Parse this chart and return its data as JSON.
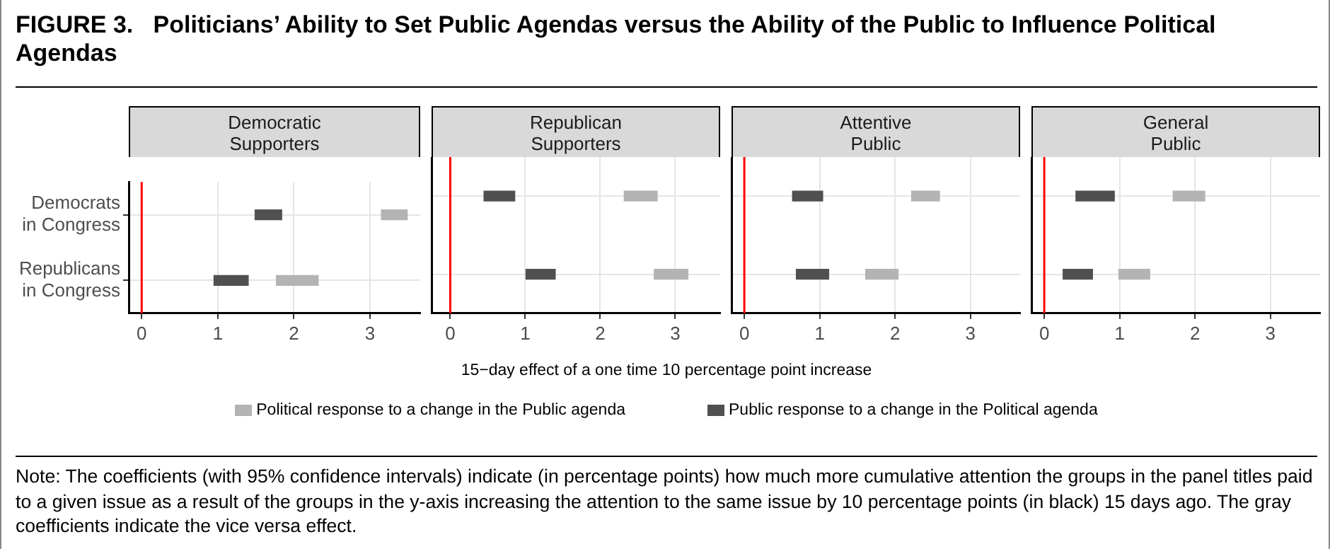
{
  "chart_data": [
    {
      "type": "bar",
      "orientation": "horizontal",
      "title": "Democratic Supporters",
      "xlabel": "15−day effect of a one time 10 percentage point increase",
      "legend": "bottom",
      "annotations": [
        "FIGURE 3.   Politicians’ Ability to Set Public Agendas versus the Ability of the Public to Influence Political Agendas",
        "Note: The coefficients (with 95% confidence intervals) indicate (in percentage points) how much more cumulative attention the groups in the panel titles paid to a given issue as a result of the groups in the y-axis increasing the attention to the same issue by 10 percentage points (in black) 15 days ago. The gray coefficients indicate the vice versa effect."
      ],
      "categories": [
        "Democrats in Congress",
        "Republicans in Congress"
      ],
      "series": [
        {
          "name": "Political response to a change in the Public agenda",
          "color": "#b3b3b3",
          "base": [
            3.15,
            1.77
          ],
          "values": [
            0.34,
            0.55
          ]
        },
        {
          "name": "Public response to a change in the Political agenda",
          "color": "#505050",
          "base": [
            1.49,
            0.95
          ],
          "values": [
            0.35,
            0.45
          ]
        }
      ],
      "xlim": [
        -0.17,
        3.66
      ],
      "xticks": [
        0,
        1,
        2,
        3
      ],
      "grid": true,
      "ref_lines": [
        {
          "axis": "x",
          "value": 0,
          "color": "#ff0000"
        }
      ]
    },
    {
      "type": "bar",
      "orientation": "horizontal",
      "title": "Republican Supporters",
      "tick_labels": "x",
      "categories": [
        null,
        null
      ],
      "series": [
        {
          "color": "#b3b3b3",
          "base": [
            2.32,
            2.72
          ],
          "values": [
            0.44,
            0.45
          ]
        },
        {
          "color": "#505050",
          "base": [
            0.45,
            1.01
          ],
          "values": [
            0.41,
            0.39
          ]
        }
      ],
      "xlim": [
        -0.25,
        3.6
      ],
      "xticks": [
        0,
        1,
        2,
        3
      ],
      "grid": true,
      "ref_lines": [
        {
          "axis": "x",
          "value": 0,
          "color": "#ff0000"
        }
      ]
    },
    {
      "type": "bar",
      "orientation": "horizontal",
      "title": "Attentive Public",
      "tick_labels": "x",
      "categories": [
        null,
        null
      ],
      "series": [
        {
          "color": "#b3b3b3",
          "base": [
            2.22,
            1.61
          ],
          "values": [
            0.37,
            0.43
          ]
        },
        {
          "color": "#505050",
          "base": [
            0.64,
            0.69
          ],
          "values": [
            0.4,
            0.43
          ]
        }
      ],
      "xlim": [
        -0.17,
        3.66
      ],
      "xticks": [
        0,
        1,
        2,
        3
      ],
      "grid": true,
      "ref_lines": [
        {
          "axis": "x",
          "value": 0,
          "color": "#ff0000"
        }
      ]
    },
    {
      "type": "bar",
      "orientation": "horizontal",
      "title": "General Public",
      "tick_labels": "x",
      "categories": [
        null,
        null
      ],
      "series": [
        {
          "color": "#b3b3b3",
          "base": [
            1.71,
            0.99
          ],
          "values": [
            0.42,
            0.41
          ]
        },
        {
          "color": "#505050",
          "base": [
            0.42,
            0.25
          ],
          "values": [
            0.51,
            0.39
          ]
        }
      ],
      "xlim": [
        -0.17,
        3.66
      ],
      "xticks": [
        0,
        1,
        2,
        3
      ],
      "grid": true,
      "ref_lines": [
        {
          "axis": "x",
          "value": 0,
          "color": "#ff0000"
        }
      ]
    }
  ]
}
